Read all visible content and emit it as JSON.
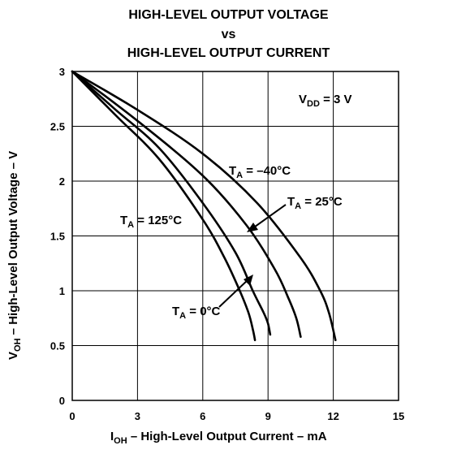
{
  "titles": [
    "HIGH-LEVEL OUTPUT VOLTAGE",
    "vs",
    "HIGH-LEVEL OUTPUT CURRENT"
  ],
  "chart_data": {
    "type": "line",
    "title": "HIGH-LEVEL OUTPUT VOLTAGE vs HIGH-LEVEL OUTPUT CURRENT",
    "xlabel": {
      "main": "I",
      "sub": "OH",
      "rest": " – High-Level Output Current – mA"
    },
    "ylabel": {
      "main": "V",
      "sub": "OH",
      "rest": " – High-Level Output Voltage – V"
    },
    "xlim": [
      0,
      15
    ],
    "ylim": [
      0,
      3
    ],
    "xticks": [
      0,
      3,
      6,
      9,
      12,
      15
    ],
    "xtick_labels": [
      "0",
      "3",
      "6",
      "9",
      "12",
      "15"
    ],
    "yticks": [
      0,
      0.5,
      1,
      1.5,
      2,
      2.5,
      3
    ],
    "ytick_labels": [
      "0",
      "0.5",
      "1",
      "1.5",
      "2",
      "2.5",
      "3"
    ],
    "grid": true,
    "annotation_vdd": {
      "main": "V",
      "sub": "DD",
      "rest": " = 3 V"
    },
    "series": [
      {
        "name": {
          "main": "T",
          "sub": "A",
          "rest": " = 125°C"
        },
        "x": [
          0,
          2,
          4,
          6,
          7,
          7.7,
          8.1,
          8.3,
          8.4
        ],
        "y": [
          3,
          2.6,
          2.2,
          1.65,
          1.3,
          1.0,
          0.8,
          0.65,
          0.55
        ]
      },
      {
        "name": {
          "main": "T",
          "sub": "A",
          "rest": " = 0°C"
        },
        "x": [
          0,
          2,
          4,
          6,
          7.5,
          8.3,
          8.8,
          9.0,
          9.1
        ],
        "y": [
          3,
          2.65,
          2.3,
          1.8,
          1.35,
          1.0,
          0.8,
          0.7,
          0.6
        ]
      },
      {
        "name": {
          "main": "T",
          "sub": "A",
          "rest": " = 25°C"
        },
        "x": [
          0,
          3,
          6,
          8,
          9.3,
          9.9,
          10.3,
          10.5
        ],
        "y": [
          3,
          2.55,
          2.05,
          1.6,
          1.2,
          0.95,
          0.75,
          0.58
        ]
      },
      {
        "name": {
          "main": "T",
          "sub": "A",
          "rest": " = –40°C"
        },
        "x": [
          0,
          3,
          6,
          8.5,
          10.5,
          11.4,
          11.8,
          12.1
        ],
        "y": [
          3,
          2.65,
          2.25,
          1.8,
          1.3,
          1.0,
          0.8,
          0.55
        ]
      }
    ]
  }
}
